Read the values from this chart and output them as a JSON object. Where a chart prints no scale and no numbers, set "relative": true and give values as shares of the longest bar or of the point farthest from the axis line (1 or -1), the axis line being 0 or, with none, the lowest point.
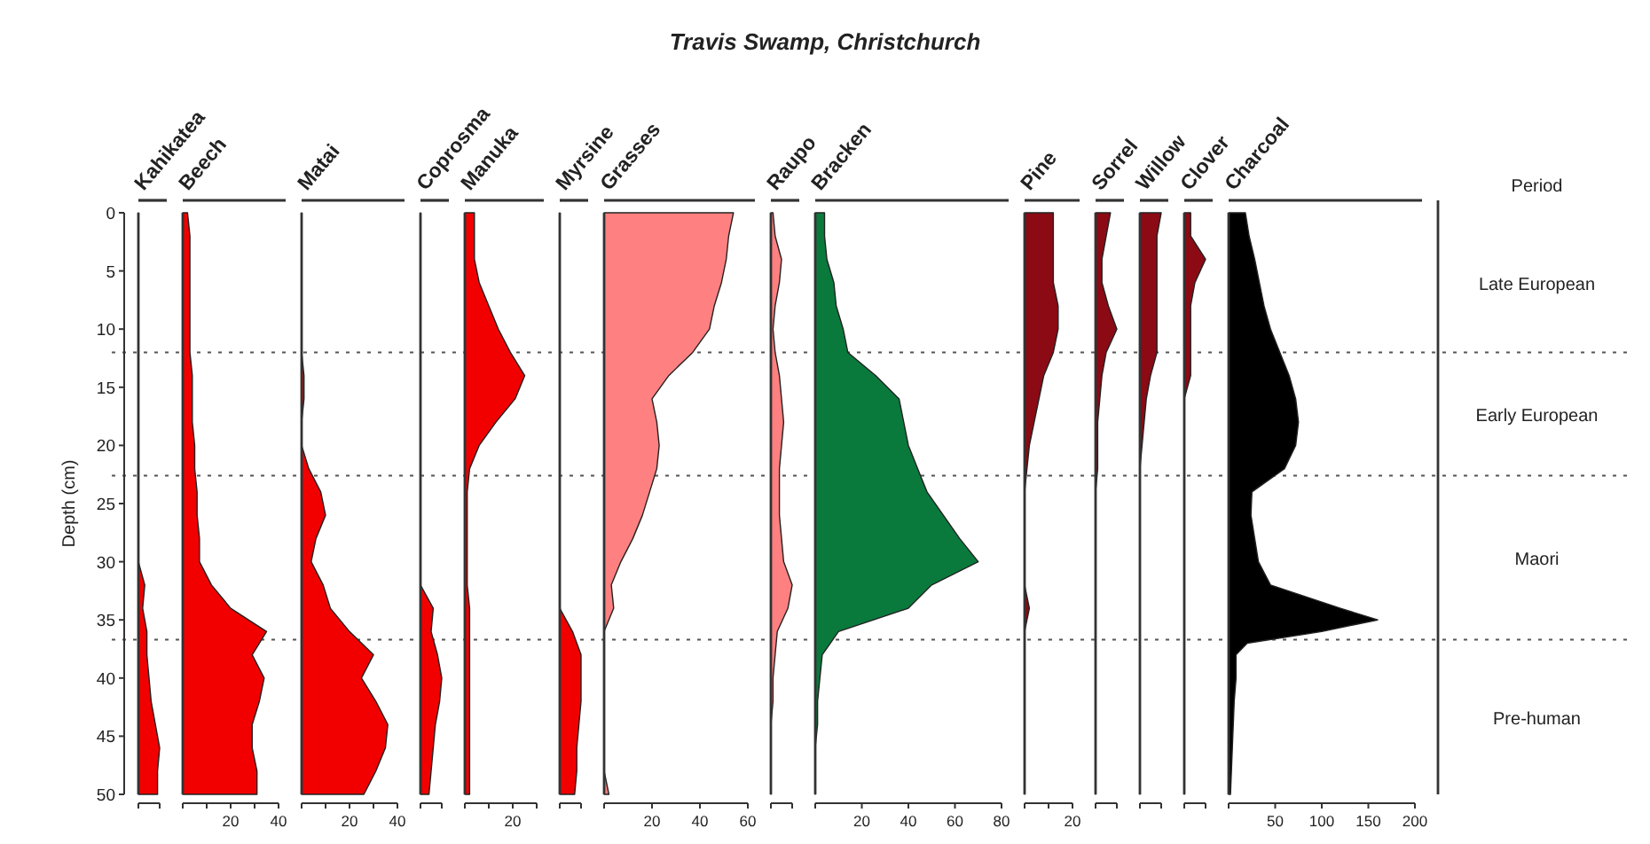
{
  "chart_data": [
    {
      "type": "other",
      "title": "Travis Swamp, Christchurch"
    },
    {
      "type": "area",
      "orientation": "horizontal",
      "relative": true,
      "ylabel": "Depth (cm)",
      "tick_labels": "y",
      "ylim": [
        50,
        0
      ],
      "annotations": [
        "Late European",
        "Early European",
        "Maori",
        "Pre-human"
      ],
      "ref_lines": [
        {
          "axis": "y",
          "value": 12,
          "line_style": "dotted"
        },
        {
          "axis": "y",
          "value": 22.6,
          "line_style": "dotted"
        },
        {
          "axis": "y",
          "value": 36.7,
          "line_style": "dotted"
        }
      ],
      "yticks": [
        0,
        5,
        10,
        15,
        20,
        25,
        30,
        35,
        40,
        45,
        50
      ],
      "x": [
        0,
        2,
        4,
        6,
        8,
        10,
        12,
        14,
        16,
        18,
        20,
        22,
        24,
        26,
        28,
        30,
        32,
        34,
        36,
        38,
        40,
        42,
        44,
        46,
        48,
        50
      ],
      "series": [
        {
          "name": "Kahikatea",
          "color": "#f20000",
          "values": [
            0,
            0,
            0,
            0,
            0,
            0,
            0,
            0,
            0,
            0,
            0,
            0,
            0,
            0,
            0,
            0,
            0.3,
            0.2,
            0.4,
            0.4,
            0.5,
            0.6,
            0.8,
            1,
            0.9,
            0.9
          ]
        }
      ]
    },
    {
      "type": "area",
      "orientation": "horizontal",
      "tick_labels": "x",
      "ylim": [
        50,
        0
      ],
      "xlim": [
        0,
        40
      ],
      "xticks": [
        {
          "value": 0,
          "label": null
        },
        {
          "value": 10,
          "label": null
        },
        20,
        {
          "value": 30,
          "label": null
        },
        40
      ],
      "x": [
        0,
        2,
        4,
        6,
        8,
        10,
        12,
        14,
        16,
        18,
        20,
        22,
        24,
        26,
        28,
        30,
        32,
        34,
        36,
        38,
        40,
        42,
        44,
        46,
        48,
        50
      ],
      "series": [
        {
          "name": "Beech",
          "color": "#f20000",
          "values": [
            2,
            3,
            3,
            3,
            3,
            3,
            3,
            4,
            4,
            4,
            5,
            5,
            6,
            6,
            7,
            7,
            12,
            20,
            35,
            29,
            34,
            32,
            29,
            29,
            31,
            31
          ]
        }
      ]
    },
    {
      "type": "area",
      "orientation": "horizontal",
      "tick_labels": "x",
      "ylim": [
        50,
        0
      ],
      "xlim": [
        0,
        40
      ],
      "xticks": [
        {
          "value": 0,
          "label": null
        },
        {
          "value": 10,
          "label": null
        },
        20,
        {
          "value": 30,
          "label": null
        },
        40
      ],
      "x": [
        0,
        2,
        4,
        6,
        8,
        10,
        12,
        14,
        16,
        18,
        20,
        22,
        24,
        26,
        28,
        30,
        32,
        34,
        36,
        38,
        40,
        42,
        44,
        46,
        48,
        50
      ],
      "series": [
        {
          "name": "Matai",
          "color": "#f20000",
          "values": [
            0,
            0,
            0,
            0,
            0,
            0,
            0,
            1,
            1,
            0,
            0,
            3,
            8,
            10,
            6,
            4,
            9,
            12,
            20,
            30,
            25,
            31,
            36,
            35,
            31,
            26
          ]
        }
      ]
    },
    {
      "type": "area",
      "orientation": "horizontal",
      "relative": true,
      "tick_labels": false,
      "ylim": [
        50,
        0
      ],
      "x": [
        0,
        2,
        4,
        6,
        8,
        10,
        12,
        14,
        16,
        18,
        20,
        22,
        24,
        26,
        28,
        30,
        32,
        34,
        36,
        38,
        40,
        42,
        44,
        46,
        48,
        50
      ],
      "series": [
        {
          "name": "Coprosma",
          "color": "#f20000",
          "values": [
            0,
            0,
            0,
            0,
            0,
            0,
            0,
            0,
            0,
            0,
            0,
            0,
            0,
            0,
            0,
            0,
            0,
            0.6,
            0.5,
            0.8,
            1,
            0.9,
            0.7,
            0.6,
            0.5,
            0.4
          ]
        }
      ]
    },
    {
      "type": "area",
      "orientation": "horizontal",
      "tick_labels": "x",
      "ylim": [
        50,
        0
      ],
      "xlim": [
        0,
        30
      ],
      "xticks": [
        {
          "value": 0,
          "label": null
        },
        {
          "value": 10,
          "label": null
        },
        20,
        {
          "value": 30,
          "label": null
        }
      ],
      "x": [
        0,
        2,
        4,
        6,
        8,
        10,
        12,
        14,
        16,
        18,
        20,
        22,
        24,
        26,
        28,
        30,
        32,
        34,
        36,
        38,
        40,
        42,
        44,
        46,
        48,
        50
      ],
      "series": [
        {
          "name": "Manuka",
          "color": "#f20000",
          "values": [
            4,
            4,
            4,
            6,
            10,
            14,
            19,
            25,
            21,
            13,
            6,
            2,
            1,
            1,
            1,
            1,
            1,
            2,
            2,
            2,
            2,
            2,
            2,
            2,
            2,
            2
          ]
        }
      ]
    },
    {
      "type": "area",
      "orientation": "horizontal",
      "relative": true,
      "tick_labels": false,
      "ylim": [
        50,
        0
      ],
      "x": [
        0,
        2,
        4,
        6,
        8,
        10,
        12,
        14,
        16,
        18,
        20,
        22,
        24,
        26,
        28,
        30,
        32,
        34,
        36,
        38,
        40,
        42,
        44,
        46,
        48,
        50
      ],
      "series": [
        {
          "name": "Myrsine",
          "color": "#f20000",
          "values": [
            0,
            0,
            0,
            0,
            0,
            0,
            0,
            0,
            0,
            0,
            0,
            0,
            0,
            0,
            0,
            0,
            0,
            0,
            0.6,
            1,
            1,
            1,
            0.9,
            0.8,
            0.8,
            0.7
          ]
        }
      ]
    },
    {
      "type": "area",
      "orientation": "horizontal",
      "tick_labels": "x",
      "ylim": [
        50,
        0
      ],
      "xlim": [
        0,
        60
      ],
      "xticks": [
        {
          "value": 0,
          "label": null
        },
        20,
        40,
        60
      ],
      "x": [
        0,
        2,
        4,
        6,
        8,
        10,
        12,
        14,
        16,
        18,
        20,
        22,
        24,
        26,
        28,
        30,
        32,
        34,
        36,
        38,
        40,
        42,
        44,
        46,
        48,
        50
      ],
      "series": [
        {
          "name": "Grasses",
          "color": "#ff8080",
          "values": [
            54,
            52,
            51,
            49,
            46,
            44,
            37,
            27,
            20,
            22,
            23,
            22,
            19,
            16,
            12,
            7,
            3,
            4,
            0,
            0,
            0,
            0,
            0,
            0,
            0,
            2
          ]
        }
      ]
    },
    {
      "type": "area",
      "orientation": "horizontal",
      "relative": true,
      "tick_labels": false,
      "ylim": [
        50,
        0
      ],
      "x": [
        0,
        2,
        4,
        6,
        8,
        10,
        12,
        14,
        16,
        18,
        20,
        22,
        24,
        26,
        28,
        30,
        32,
        34,
        36,
        38,
        40,
        42,
        44,
        46,
        48,
        50
      ],
      "series": [
        {
          "name": "Raupo",
          "color": "#ff8080",
          "values": [
            0.1,
            0.2,
            0.5,
            0.4,
            0.2,
            0.1,
            0.2,
            0.4,
            0.5,
            0.6,
            0.5,
            0.4,
            0.4,
            0.4,
            0.5,
            0.6,
            1,
            0.8,
            0.3,
            0.2,
            0.1,
            0.1,
            0,
            0,
            0,
            0
          ]
        }
      ]
    },
    {
      "type": "area",
      "orientation": "horizontal",
      "tick_labels": "x",
      "ylim": [
        50,
        0
      ],
      "xlim": [
        0,
        80
      ],
      "xticks": [
        {
          "value": 0,
          "label": null
        },
        20,
        40,
        60,
        80
      ],
      "x": [
        0,
        2,
        4,
        6,
        8,
        10,
        12,
        14,
        16,
        18,
        20,
        22,
        24,
        26,
        28,
        30,
        32,
        34,
        36,
        38,
        40,
        42,
        44,
        46,
        48,
        50
      ],
      "series": [
        {
          "name": "Bracken",
          "color": "#0a7a3c",
          "values": [
            4,
            4,
            5,
            8,
            9,
            12,
            14,
            26,
            36,
            38,
            40,
            44,
            48,
            55,
            62,
            70,
            50,
            40,
            10,
            3,
            2,
            1,
            1,
            0,
            0,
            0
          ]
        }
      ]
    },
    {
      "type": "area",
      "orientation": "horizontal",
      "tick_labels": "x",
      "ylim": [
        50,
        0
      ],
      "xlim": [
        0,
        20
      ],
      "xticks": [
        {
          "value": 0,
          "label": null
        },
        {
          "value": 10,
          "label": null
        },
        20
      ],
      "x": [
        0,
        2,
        4,
        6,
        8,
        10,
        12,
        14,
        16,
        18,
        20,
        22,
        24,
        26,
        28,
        30,
        32,
        34,
        36,
        38,
        40,
        42,
        44,
        46,
        48,
        50
      ],
      "series": [
        {
          "name": "Pine",
          "color": "#8b0a14",
          "values": [
            12,
            12,
            12,
            12,
            14,
            14,
            12,
            8,
            6,
            4,
            2,
            1,
            0,
            0,
            0,
            0,
            0,
            2,
            0,
            0,
            0,
            0,
            0,
            0,
            0,
            0
          ]
        }
      ]
    },
    {
      "type": "area",
      "orientation": "horizontal",
      "relative": true,
      "tick_labels": false,
      "ylim": [
        50,
        0
      ],
      "x": [
        0,
        2,
        4,
        6,
        8,
        10,
        12,
        14,
        16,
        18,
        20,
        22,
        24,
        26,
        28,
        30,
        32,
        34,
        36,
        38,
        40,
        42,
        44,
        46,
        48,
        50
      ],
      "series": [
        {
          "name": "Sorrel",
          "color": "#8b0a14",
          "values": [
            0.7,
            0.5,
            0.3,
            0.3,
            0.6,
            1,
            0.5,
            0.3,
            0.2,
            0.1,
            0.1,
            0.1,
            0,
            0,
            0,
            0,
            0,
            0,
            0,
            0,
            0,
            0,
            0,
            0,
            0,
            0
          ]
        }
      ]
    },
    {
      "type": "area",
      "orientation": "horizontal",
      "relative": true,
      "tick_labels": false,
      "ylim": [
        50,
        0
      ],
      "x": [
        0,
        2,
        4,
        6,
        8,
        10,
        12,
        14,
        16,
        18,
        20,
        22,
        24,
        26,
        28,
        30,
        32,
        34,
        36,
        38,
        40,
        42,
        44,
        46,
        48,
        50
      ],
      "series": [
        {
          "name": "Willow",
          "color": "#8b0a14",
          "values": [
            1,
            0.8,
            0.8,
            0.8,
            0.8,
            0.8,
            0.8,
            0.5,
            0.3,
            0.2,
            0.1,
            0,
            0,
            0,
            0,
            0,
            0,
            0,
            0,
            0,
            0,
            0,
            0,
            0,
            0,
            0
          ]
        }
      ]
    },
    {
      "type": "area",
      "orientation": "horizontal",
      "relative": true,
      "tick_labels": false,
      "ylim": [
        50,
        0
      ],
      "x": [
        0,
        2,
        4,
        6,
        8,
        10,
        12,
        14,
        16,
        18,
        20,
        22,
        24,
        26,
        28,
        30,
        32,
        34,
        36,
        38,
        40,
        42,
        44,
        46,
        48,
        50
      ],
      "series": [
        {
          "name": "Clover",
          "color": "#8b0a14",
          "values": [
            0.3,
            0.3,
            1,
            0.5,
            0.3,
            0.3,
            0.3,
            0.3,
            0,
            0,
            0,
            0,
            0,
            0,
            0,
            0,
            0,
            0,
            0,
            0,
            0,
            0,
            0,
            0,
            0,
            0
          ]
        }
      ]
    },
    {
      "type": "area",
      "orientation": "horizontal",
      "tick_labels": "x",
      "ylim": [
        50,
        0
      ],
      "xlim": [
        0,
        200
      ],
      "xticks": [
        {
          "value": 0,
          "label": null
        },
        50,
        100,
        150,
        200
      ],
      "x": [
        0,
        2,
        4,
        6,
        8,
        10,
        12,
        14,
        16,
        18,
        20,
        22,
        24,
        26,
        28,
        30,
        32,
        34,
        35,
        36,
        37,
        38,
        40,
        42,
        44,
        46,
        48,
        50
      ],
      "series": [
        {
          "name": "Charcoal",
          "color": "#000000",
          "values": [
            18,
            22,
            28,
            33,
            38,
            45,
            55,
            65,
            72,
            75,
            72,
            60,
            25,
            24,
            28,
            32,
            45,
            120,
            160,
            100,
            20,
            8,
            8,
            6,
            5,
            4,
            3,
            2
          ]
        }
      ]
    },
    {
      "type": "other",
      "title": "Period"
    }
  ]
}
